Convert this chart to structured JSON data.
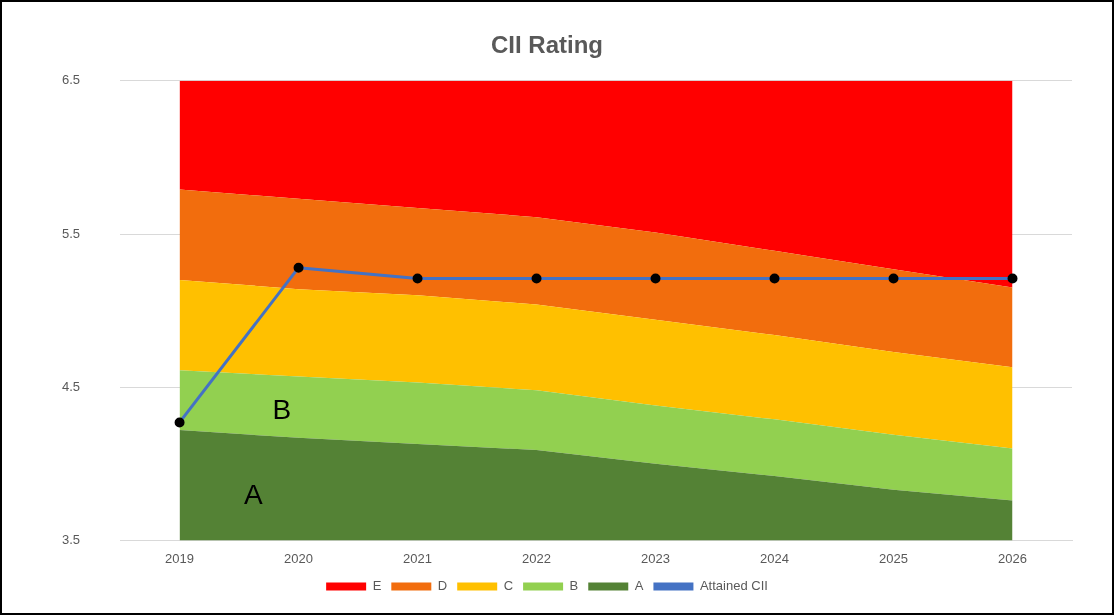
{
  "chart_data": {
    "type": "area",
    "title": "CII Rating",
    "categories": [
      "2019",
      "2020",
      "2021",
      "2022",
      "2023",
      "2024",
      "2025",
      "2026"
    ],
    "series": [
      {
        "name": "A",
        "color": "#548235",
        "values": [
          4.22,
          4.17,
          4.13,
          4.09,
          4.0,
          3.92,
          3.83,
          3.76
        ]
      },
      {
        "name": "B",
        "color": "#92d050",
        "values": [
          4.61,
          4.57,
          4.53,
          4.48,
          4.38,
          4.29,
          4.19,
          4.1
        ]
      },
      {
        "name": "C",
        "color": "#ffc000",
        "values": [
          5.2,
          5.14,
          5.1,
          5.04,
          4.94,
          4.84,
          4.73,
          4.63
        ]
      },
      {
        "name": "D",
        "color": "#f26d0d",
        "values": [
          5.79,
          5.73,
          5.67,
          5.61,
          5.51,
          5.39,
          5.27,
          5.15
        ]
      },
      {
        "name": "E",
        "color": "#ff0000",
        "values": [
          6.5,
          6.5,
          6.5,
          6.5,
          6.5,
          6.5,
          6.5,
          6.5
        ]
      },
      {
        "name": "Attained CII",
        "type": "line",
        "color": "#4472c4",
        "values": [
          4.27,
          5.28,
          5.21,
          5.21,
          5.21,
          5.21,
          5.21,
          5.21
        ],
        "marker": "circle"
      }
    ],
    "ylim": [
      3.5,
      6.5
    ],
    "yticks": [
      3.5,
      4.5,
      5.5,
      6.5
    ],
    "grid": "y",
    "legend": "bottom",
    "annotations": [
      "B",
      "A"
    ]
  }
}
